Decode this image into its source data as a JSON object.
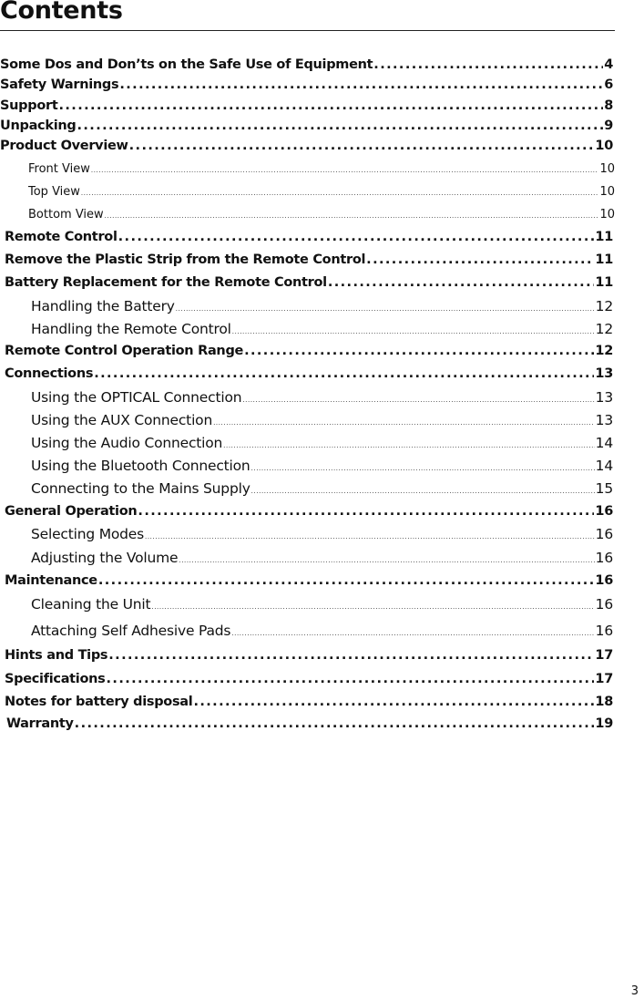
{
  "title": "Contents",
  "entries": [
    {
      "label": "Some Dos and Don’ts on the Safe Use of Equipment",
      "page": "4",
      "level": "l1"
    },
    {
      "label": "Safety Warnings",
      "page": "6",
      "level": "l1"
    },
    {
      "label": "Support ",
      "page": "8",
      "level": "l1"
    },
    {
      "label": "Unpacking",
      "page": "9",
      "level": "l1"
    },
    {
      "label": "Product Overview",
      "page": "10",
      "level": "l1"
    },
    {
      "label": "Front View",
      "page": "10",
      "level": "l2s"
    },
    {
      "label": "Top View",
      "page": "10",
      "level": "l2s"
    },
    {
      "label": "Bottom View",
      "page": "10",
      "level": "l2s"
    },
    {
      "label": "Remote Control",
      "page": "11",
      "level": "l1"
    },
    {
      "label": "Remove the Plastic Strip from the Remote Control",
      "page": "11",
      "level": "l1"
    },
    {
      "label": "Battery Replacement for the Remote Control",
      "page": "11",
      "level": "l1"
    },
    {
      "label": "Handling the Battery",
      "page": "12",
      "level": "l2"
    },
    {
      "label": "Handling the Remote Control",
      "page": "12",
      "level": "l2"
    },
    {
      "label": "Remote Control Operation Range",
      "page": "12",
      "level": "l1"
    },
    {
      "label": "Connections ",
      "page": "13",
      "level": "l1"
    },
    {
      "label": "Using the OPTICAL Connection",
      "page": "13",
      "level": "l2"
    },
    {
      "label": "Using the AUX Connection",
      "page": "13",
      "level": "l2"
    },
    {
      "label": "Using the Audio Connection",
      "page": "14",
      "level": "l2"
    },
    {
      "label": "Using the Bluetooth Connection",
      "page": "14",
      "level": "l2"
    },
    {
      "label": "Connecting to the Mains Supply",
      "page": "15",
      "level": "l2"
    },
    {
      "label": "General Operation",
      "page": "16",
      "level": "l1"
    },
    {
      "label": "Selecting Modes",
      "page": "16",
      "level": "l2"
    },
    {
      "label": "Adjusting the Volume",
      "page": "16",
      "level": "l2"
    },
    {
      "label": "Maintenance ",
      "page": "16",
      "level": "l1"
    },
    {
      "label": "Cleaning the Unit",
      "page": "16",
      "level": "l2"
    },
    {
      "label": "Attaching Self Adhesive Pads",
      "page": "16",
      "level": "l2"
    },
    {
      "label": "Hints and Tips ",
      "page": "17",
      "level": "l1"
    },
    {
      "label": "Specifications",
      "page": "17",
      "level": "l1"
    },
    {
      "label": "Notes for battery disposal",
      "page": "18",
      "level": "l1"
    },
    {
      "label": "Warranty   ",
      "page": "19",
      "level": "l1"
    }
  ],
  "page_number": "3"
}
